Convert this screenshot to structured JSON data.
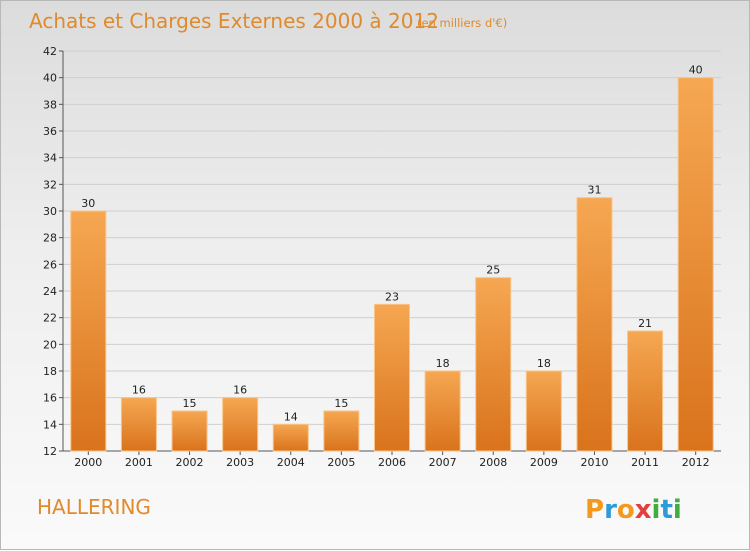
{
  "chart_data": {
    "type": "bar",
    "title": "Achats et Charges Externes 2000 à 2012",
    "subtitle": "(en milliers d'€)",
    "categories": [
      "2000",
      "2001",
      "2002",
      "2003",
      "2004",
      "2005",
      "2006",
      "2007",
      "2008",
      "2009",
      "2010",
      "2011",
      "2012"
    ],
    "values": [
      30,
      16,
      15,
      16,
      14,
      15,
      23,
      18,
      25,
      18,
      31,
      21,
      40
    ],
    "ylim": [
      12,
      42
    ],
    "yticks": [
      12,
      14,
      16,
      18,
      20,
      22,
      24,
      26,
      28,
      30,
      32,
      34,
      36,
      38,
      40,
      42
    ],
    "grid": true,
    "data_labels": true,
    "colors": {
      "bar_top": "#f6a752",
      "bar_bottom": "#d9731c",
      "title": "#e08a2c"
    }
  },
  "place_name": "HALLERING",
  "logo": {
    "letters": [
      "P",
      "r",
      "o",
      "x",
      "i",
      "t",
      "i"
    ],
    "colors": [
      "#f39a1e",
      "#2f9ad8",
      "#f39a1e",
      "#e43f3f",
      "#3fae3f",
      "#2f9ad8",
      "#3fae3f"
    ]
  }
}
